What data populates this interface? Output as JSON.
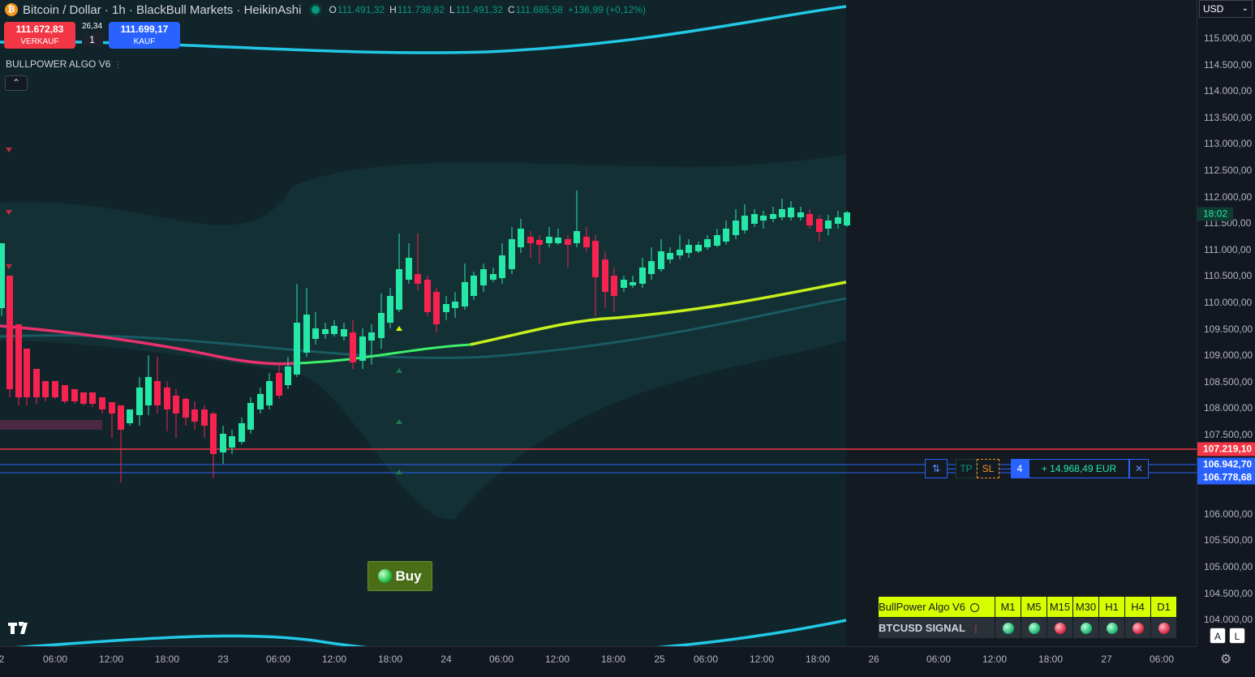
{
  "header": {
    "coin_symbol": "₿",
    "title": "Bitcoin / Dollar · 1h · BlackBull Markets · HeikinAshi",
    "open_label": "O",
    "open": "111.491,32",
    "high_label": "H",
    "high": "111.738,82",
    "low_label": "L",
    "low": "111.491,32",
    "close_label": "C",
    "close": "111.685,58",
    "change": "+136,99 (+0,12%)"
  },
  "trade": {
    "sell_price": "111.672,83",
    "sell_label": "VERKAUF",
    "spread": "26,34",
    "quantity": "1",
    "buy_price": "111.699,17",
    "buy_label": "KAUF"
  },
  "indicator": {
    "name": "BULLPOWER ALGO V6",
    "collapse_glyph": "⌃"
  },
  "buy_signal": {
    "label": "Buy"
  },
  "currency": {
    "value": "USD"
  },
  "price_axis": {
    "ticks": [
      "115.000,00",
      "114.500,00",
      "114.000,00",
      "113.500,00",
      "113.000,00",
      "112.500,00",
      "112.000,00",
      "111.500,00",
      "111.000,00",
      "110.500,00",
      "110.000,00",
      "109.500,00",
      "109.000,00",
      "108.500,00",
      "108.000,00",
      "107.500,00",
      "106.000,00",
      "105.500,00",
      "105.000,00",
      "104.500,00",
      "104.000,00"
    ],
    "countdown": "18:02",
    "stop_level": "107.219,10",
    "entry_level": "106.942,70",
    "avg_level": "106.778,68"
  },
  "time_axis": {
    "ticks": [
      "2",
      "06:00",
      "12:00",
      "18:00",
      "23",
      "06:00",
      "12:00",
      "18:00",
      "24",
      "06:00",
      "12:00",
      "18:00",
      "25",
      "06:00",
      "12:00",
      "18:00",
      "26",
      "06:00",
      "12:00",
      "18:00",
      "27",
      "06:00"
    ]
  },
  "order_widget": {
    "reverse_icon": "⇅",
    "tp_label": "TP",
    "sl_label": "SL",
    "count": "4",
    "pnl": "+ 14.968,49 EUR",
    "close_icon": "✕"
  },
  "signal_table": {
    "title": "BullPower Algo V6",
    "row_label": "BTCUSD SIGNAL",
    "timeframes": [
      "M1",
      "M5",
      "M15",
      "M30",
      "H1",
      "H4",
      "D1"
    ],
    "signals": [
      "green",
      "green",
      "red",
      "green",
      "green",
      "red",
      "red"
    ]
  },
  "axis_buttons": {
    "auto": "A",
    "log": "L"
  },
  "colors": {
    "bull": "#26e8a6",
    "bear": "#f7224f",
    "band": "#22c8e6",
    "trend_up": "#c6f01c",
    "trend_down": "#e8326e",
    "accent": "#2962ff"
  },
  "chart_data": {
    "type": "candlestick",
    "series": [
      {
        "name": "",
        "open": 111491.32,
        "high": 111738.82,
        "low": 111491.32,
        "close": 111685.58
      }
    ]
  }
}
